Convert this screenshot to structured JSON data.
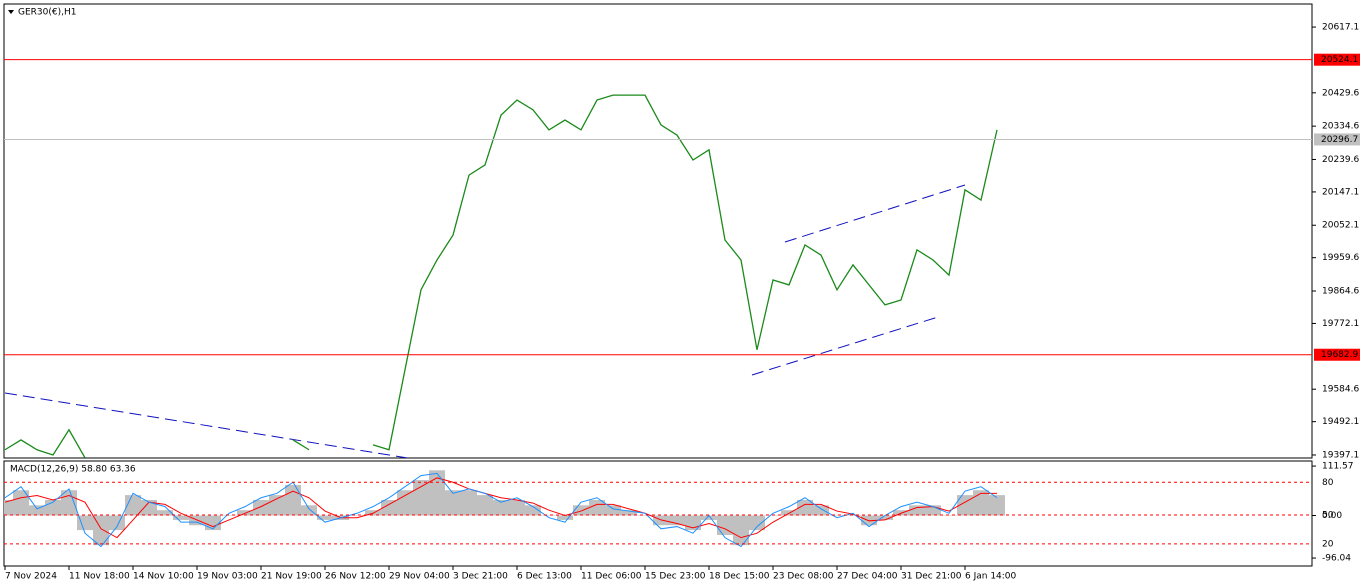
{
  "chart_data": [
    {
      "type": "line",
      "title": "GER30(€),H1",
      "categories": [
        "7 Nov 2024",
        null,
        null,
        null,
        "11 Nov 18:00",
        null,
        null,
        null,
        "14 Nov 10:00",
        null,
        null,
        null,
        "19 Nov 03:00",
        null,
        null,
        null,
        "21 Nov 19:00",
        null,
        null,
        null,
        "26 Nov 12:00",
        null,
        null,
        null,
        "29 Nov 04:00",
        null,
        null,
        null,
        "3 Dec 21:00",
        null,
        null,
        null,
        "6 Dec 13:00",
        null,
        null,
        null,
        "11 Dec 06:00",
        null,
        null,
        null,
        "15 Dec 23:00",
        null,
        null,
        null,
        "18 Dec 15:00",
        null,
        null,
        null,
        "23 Dec 08:00",
        null,
        null,
        null,
        "27 Dec 04:00",
        null,
        null,
        null,
        "31 Dec 21:00",
        null,
        null,
        null,
        "6 Jan 14:00",
        null,
        null
      ],
      "series": [
        {
          "color": "#1a8a1a",
          "values": [
            19412,
            19440,
            19412,
            19397,
            19469,
            19389,
            null,
            null,
            null,
            null,
            null,
            null,
            null,
            null,
            null,
            null,
            null,
            null,
            19440,
            19412,
            null,
            null,
            null,
            19426,
            19412,
            19640,
            19868,
            19953,
            20024,
            20195,
            20224,
            20366,
            20409,
            20381,
            20324,
            20352,
            20324,
            20409,
            20423,
            20423,
            20423,
            20338,
            20309,
            20238,
            20267,
            20010,
            19953,
            19697,
            19896,
            19882,
            19996,
            19967,
            19868,
            19939,
            19882,
            19825,
            19839,
            19982,
            19953,
            19910,
            20153,
            20124,
            20324
          ]
        }
      ],
      "ylim": [
        19388.5,
        20680
      ],
      "yticks": [
        20617.1,
        20429.6,
        20334.6,
        20239.6,
        20147.1,
        20052.1,
        19959.6,
        19864.6,
        19772.1,
        19584.6,
        19492.1,
        19397.1
      ],
      "levels": [
        {
          "value": 20524.1,
          "color": "#ff0000"
        },
        {
          "value": 19682.9,
          "color": "#ff0000"
        },
        {
          "value": 20296.7,
          "color": "#c0c0c0"
        }
      ]
    },
    {
      "type": "macd",
      "title": "MACD(12,26,9) 58.80 63.36",
      "series": [
        {
          "color": "#c0c0c0",
          "values": [
            35,
            57,
            23,
            35,
            57,
            -33,
            -67,
            -33,
            46,
            35,
            12,
            -10,
            -22,
            -33,
            1,
            12,
            35,
            46,
            69,
            23,
            -10,
            -10,
            1,
            12,
            35,
            57,
            80,
            102,
            57,
            57,
            46,
            35,
            35,
            23,
            1,
            -10,
            23,
            35,
            23,
            12,
            1,
            -22,
            -22,
            -33,
            -10,
            -44,
            -67,
            -33,
            1,
            12,
            35,
            23,
            1,
            1,
            -22,
            -10,
            12,
            23,
            23,
            1,
            46,
            57,
            46
          ]
        },
        {
          "color": "#ff0000",
          "values": [
            30,
            40,
            45,
            35,
            45,
            30,
            -30,
            -50,
            -10,
            30,
            25,
            5,
            -10,
            -25,
            -10,
            5,
            20,
            38,
            55,
            40,
            10,
            -5,
            -5,
            5,
            25,
            45,
            65,
            85,
            75,
            60,
            50,
            40,
            35,
            28,
            12,
            0,
            10,
            25,
            25,
            15,
            5,
            -10,
            -18,
            -28,
            -18,
            -30,
            -50,
            -40,
            -15,
            5,
            25,
            25,
            10,
            3,
            -12,
            -10,
            5,
            18,
            20,
            10,
            30,
            50,
            50
          ]
        },
        {
          "color": "#1e90ff",
          "values": [
            40,
            65,
            15,
            30,
            60,
            -40,
            -70,
            -25,
            50,
            30,
            20,
            -15,
            -15,
            -30,
            5,
            20,
            40,
            50,
            75,
            15,
            -15,
            -5,
            5,
            20,
            40,
            65,
            90,
            95,
            50,
            60,
            50,
            30,
            40,
            20,
            -5,
            -15,
            30,
            40,
            15,
            10,
            5,
            -30,
            -25,
            -40,
            0,
            -50,
            -70,
            -25,
            5,
            20,
            40,
            15,
            -5,
            5,
            -25,
            0,
            20,
            30,
            20,
            5,
            55,
            65,
            40
          ]
        }
      ],
      "ylim": [
        -114,
        123
      ],
      "yticks": [
        111.57,
        {
          "value": 0,
          "label": "0.00"
        },
        -96.04
      ],
      "levels": [
        75,
        1,
        -64
      ],
      "level_labels": [
        "80",
        "50",
        "20"
      ]
    }
  ]
}
